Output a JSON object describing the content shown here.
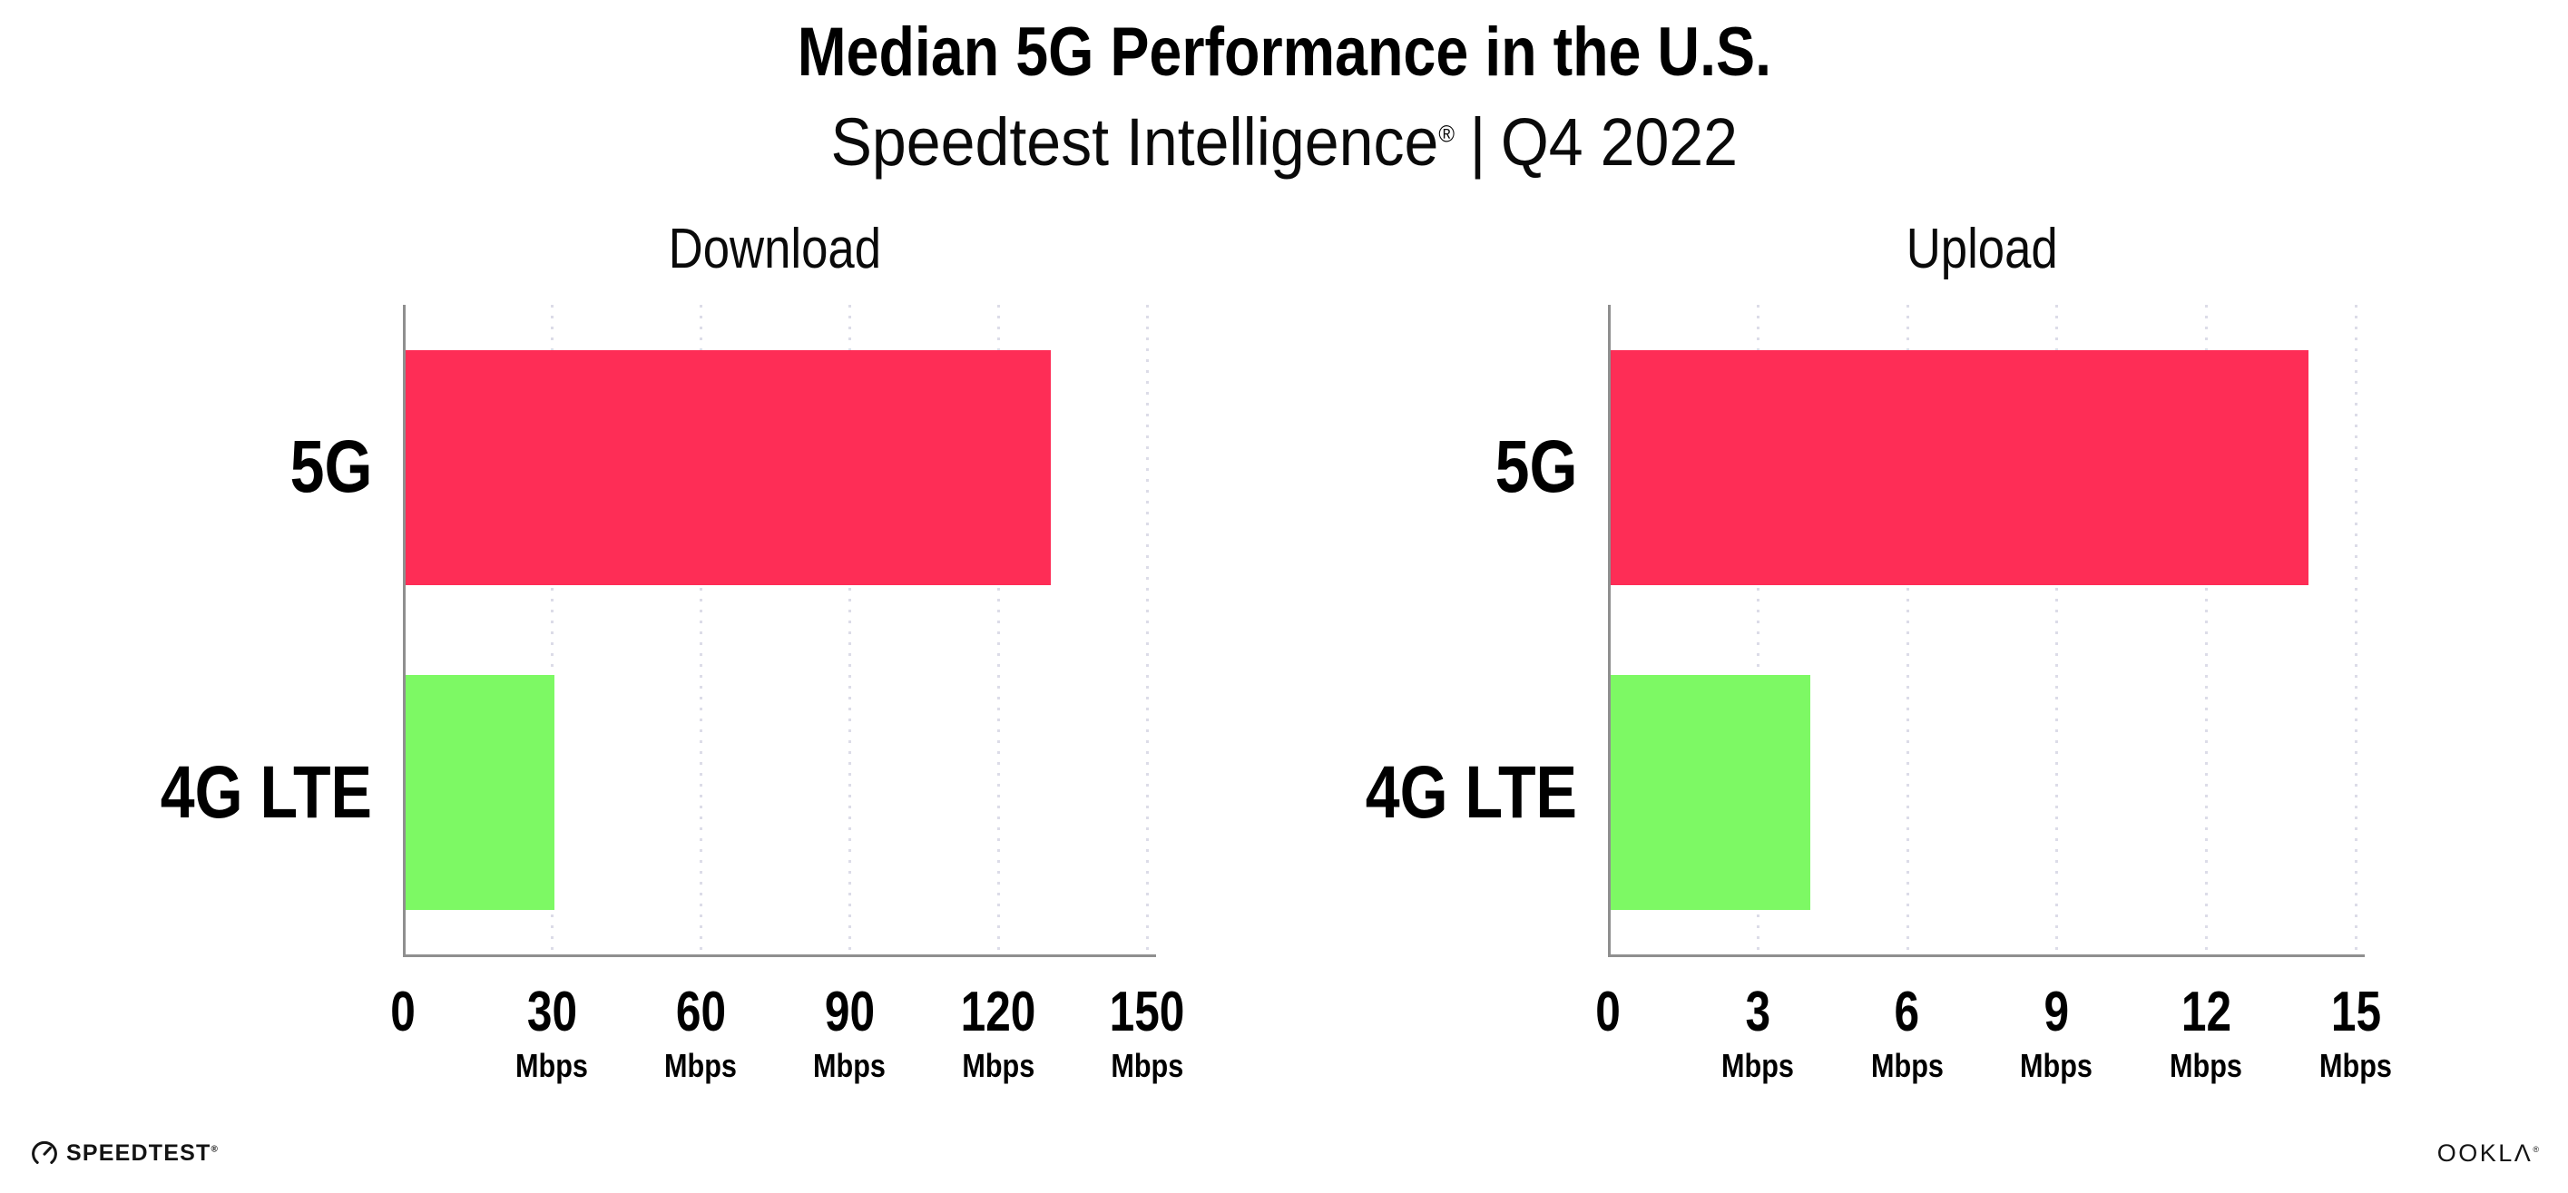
{
  "header": {
    "title": "Median 5G Performance in the U.S.",
    "subtitle_brand": "Speedtest Intelligence",
    "subtitle_reg": "®",
    "subtitle_divider": "|",
    "subtitle_period": "Q4 2022"
  },
  "chart_data": [
    {
      "type": "bar",
      "orientation": "horizontal",
      "title": "Download",
      "categories": [
        "5G",
        "4G LTE"
      ],
      "values": [
        130,
        30
      ],
      "unit": "Mbps",
      "xlim": [
        0,
        150
      ],
      "xticks": [
        0,
        30,
        60,
        90,
        120,
        150
      ],
      "bar_colors": [
        "#FE2D56",
        "#7DF964"
      ],
      "grid": "dotted-vertical",
      "legend": "none"
    },
    {
      "type": "bar",
      "orientation": "horizontal",
      "title": "Upload",
      "categories": [
        "5G",
        "4G LTE"
      ],
      "values": [
        14,
        4
      ],
      "unit": "Mbps",
      "xlim": [
        0,
        15
      ],
      "xticks": [
        0,
        3,
        6,
        9,
        12,
        15
      ],
      "bar_colors": [
        "#FE2D56",
        "#7DF964"
      ],
      "grid": "dotted-vertical",
      "legend": "none"
    }
  ],
  "footer": {
    "speedtest_logo_text": "SPEEDTEST",
    "speedtest_reg": "®",
    "ookla_logo_text": "OOKLΛ",
    "ookla_reg": "®"
  },
  "colors": {
    "bar_5g": "#FE2D56",
    "bar_4g_lte": "#7DF964",
    "axis": "#8F8F8F",
    "gridline": "#DCDCE8",
    "text": "#000000",
    "logo_text": "#141414"
  }
}
